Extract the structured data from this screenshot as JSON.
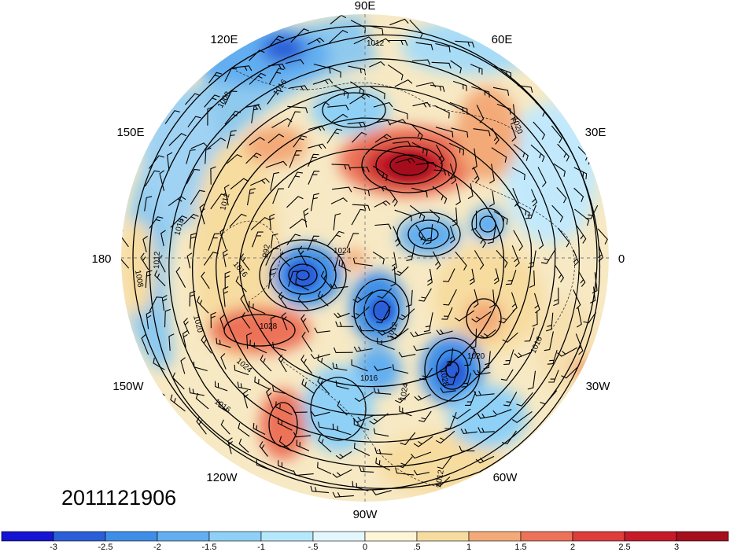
{
  "map": {
    "projection": "polar-stereographic",
    "hemisphere": "north",
    "background_field": "anomaly shading",
    "longitude_labels": [
      "90E",
      "60E",
      "30E",
      "0",
      "30W",
      "60W",
      "90W",
      "120W",
      "150W",
      "180",
      "150E",
      "120E"
    ],
    "isobar_labels": [
      "1012",
      "1016",
      "1008",
      "1020",
      "1012",
      "1016",
      "1012",
      "1008",
      "992",
      "1024",
      "1016",
      "1028",
      "1024",
      "1020",
      "1016",
      "1012",
      "1016",
      "1024",
      "1016",
      "1020",
      "1012",
      "1028"
    ]
  },
  "date_label": "2011121906",
  "colorbar": {
    "tick_labels": [
      "-3",
      "-2.5",
      "-2",
      "-1.5",
      "-1",
      "-.5",
      "0",
      ".5",
      "1",
      "1.5",
      "2",
      "2.5",
      "3"
    ],
    "colors": [
      "#1414d2",
      "#2a5fd8",
      "#3e8ee8",
      "#62aef0",
      "#8ed0f6",
      "#b6e8fb",
      "#e4f6fd",
      "#fdf5d6",
      "#f7dca0",
      "#f3aa78",
      "#ec7258",
      "#dd3d3b",
      "#c41a2a",
      "#a50f1e"
    ]
  }
}
